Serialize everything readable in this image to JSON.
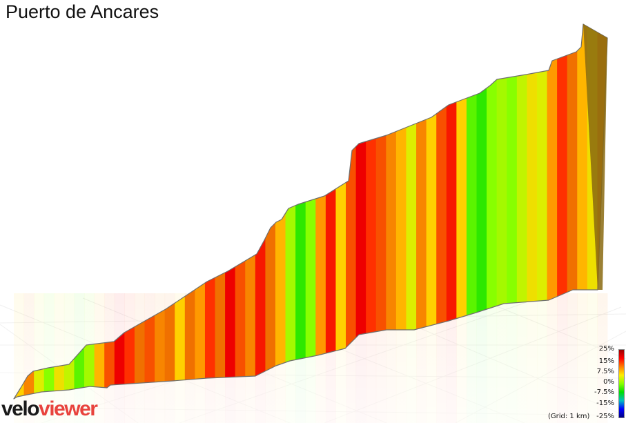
{
  "title": "Puerto de Ancares",
  "brand": {
    "part1": "velo",
    "part2": "viewer",
    "color1": "#1a1a1a",
    "color2": "#e8433d"
  },
  "grid_caption": "(Grid: 1 km)",
  "legend": {
    "labels": [
      "25%",
      "15%",
      "7.5%",
      "0%",
      "-7.5%",
      "-15%",
      "-25%"
    ],
    "gradient": [
      "#990000",
      "#ff0000",
      "#ff7f00",
      "#ffee00",
      "#88ff00",
      "#00dd00",
      "#00c0c0",
      "#0000ff",
      "#000080"
    ]
  },
  "chart_data": {
    "type": "area",
    "title": "Puerto de Ancares",
    "xlabel": "",
    "ylabel": "",
    "grid": true,
    "grid_spacing_km": 1,
    "color_scale": "gradient %",
    "gradient_range": [
      -25,
      25
    ],
    "segments": [
      {
        "km": 0.0,
        "gradient": 8
      },
      {
        "km": 0.2,
        "gradient": 11
      },
      {
        "km": 0.4,
        "gradient": 6
      },
      {
        "km": 0.6,
        "gradient": 3
      },
      {
        "km": 0.8,
        "gradient": 7
      },
      {
        "km": 1.0,
        "gradient": 5
      },
      {
        "km": 1.2,
        "gradient": 2
      },
      {
        "km": 1.4,
        "gradient": 4
      },
      {
        "km": 1.6,
        "gradient": 9
      },
      {
        "km": 1.8,
        "gradient": 13
      },
      {
        "km": 2.0,
        "gradient": 16
      },
      {
        "km": 2.2,
        "gradient": 14
      },
      {
        "km": 2.4,
        "gradient": 12
      },
      {
        "km": 2.6,
        "gradient": 13
      },
      {
        "km": 2.8,
        "gradient": 11
      },
      {
        "km": 3.0,
        "gradient": 12
      },
      {
        "km": 3.2,
        "gradient": 8
      },
      {
        "km": 3.4,
        "gradient": 12
      },
      {
        "km": 3.6,
        "gradient": 10
      },
      {
        "km": 3.8,
        "gradient": 14
      },
      {
        "km": 4.0,
        "gradient": 12
      },
      {
        "km": 4.2,
        "gradient": 16
      },
      {
        "km": 4.4,
        "gradient": 13
      },
      {
        "km": 4.6,
        "gradient": 11
      },
      {
        "km": 4.8,
        "gradient": 15
      },
      {
        "km": 5.0,
        "gradient": 12
      },
      {
        "km": 5.2,
        "gradient": 9
      },
      {
        "km": 5.4,
        "gradient": 4
      },
      {
        "km": 5.6,
        "gradient": 1
      },
      {
        "km": 5.8,
        "gradient": 3
      },
      {
        "km": 6.0,
        "gradient": 10
      },
      {
        "km": 6.2,
        "gradient": 15
      },
      {
        "km": 6.4,
        "gradient": 8
      },
      {
        "km": 6.6,
        "gradient": 13
      },
      {
        "km": 6.8,
        "gradient": 16
      },
      {
        "km": 7.0,
        "gradient": 14
      },
      {
        "km": 7.2,
        "gradient": 13
      },
      {
        "km": 7.4,
        "gradient": 11
      },
      {
        "km": 7.6,
        "gradient": 9
      },
      {
        "km": 7.8,
        "gradient": 6
      },
      {
        "km": 8.0,
        "gradient": 11
      },
      {
        "km": 8.2,
        "gradient": 8
      },
      {
        "km": 8.4,
        "gradient": 13
      },
      {
        "km": 8.6,
        "gradient": 15
      },
      {
        "km": 8.8,
        "gradient": 8
      },
      {
        "km": 9.0,
        "gradient": 2
      },
      {
        "km": 9.2,
        "gradient": 1
      },
      {
        "km": 9.4,
        "gradient": 3
      },
      {
        "km": 9.6,
        "gradient": 4
      },
      {
        "km": 9.8,
        "gradient": 3
      },
      {
        "km": 10.0,
        "gradient": 5
      },
      {
        "km": 10.2,
        "gradient": 7
      },
      {
        "km": 10.4,
        "gradient": 6
      },
      {
        "km": 10.6,
        "gradient": 10
      },
      {
        "km": 10.8,
        "gradient": 14
      },
      {
        "km": 11.0,
        "gradient": 12
      },
      {
        "km": 11.2,
        "gradient": 9
      },
      {
        "km": 11.4,
        "gradient": 7
      },
      {
        "km": 11.6,
        "gradient": 11
      }
    ]
  }
}
